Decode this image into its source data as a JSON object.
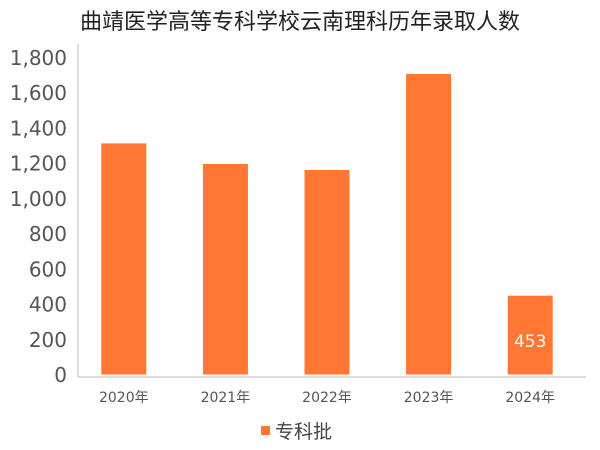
{
  "chart_data": {
    "type": "bar",
    "title": "曲靖医学高等专科学校云南理科历年录取人数",
    "categories": [
      "2020年",
      "2021年",
      "2022年",
      "2023年",
      "2024年"
    ],
    "series": [
      {
        "name": "专科批",
        "color": "#ff7733",
        "values": [
          1318,
          1201,
          1167,
          1712,
          453
        ],
        "data_labels": [
          null,
          null,
          null,
          null,
          "453"
        ]
      }
    ],
    "ylim": [
      0,
      1800
    ],
    "yticks": [
      "0",
      "200",
      "400",
      "600",
      "800",
      "1,000",
      "1,200",
      "1,400",
      "1,600",
      "1,800"
    ],
    "xlabel": "",
    "ylabel": "",
    "grid": false,
    "legend": "bottom-center"
  }
}
